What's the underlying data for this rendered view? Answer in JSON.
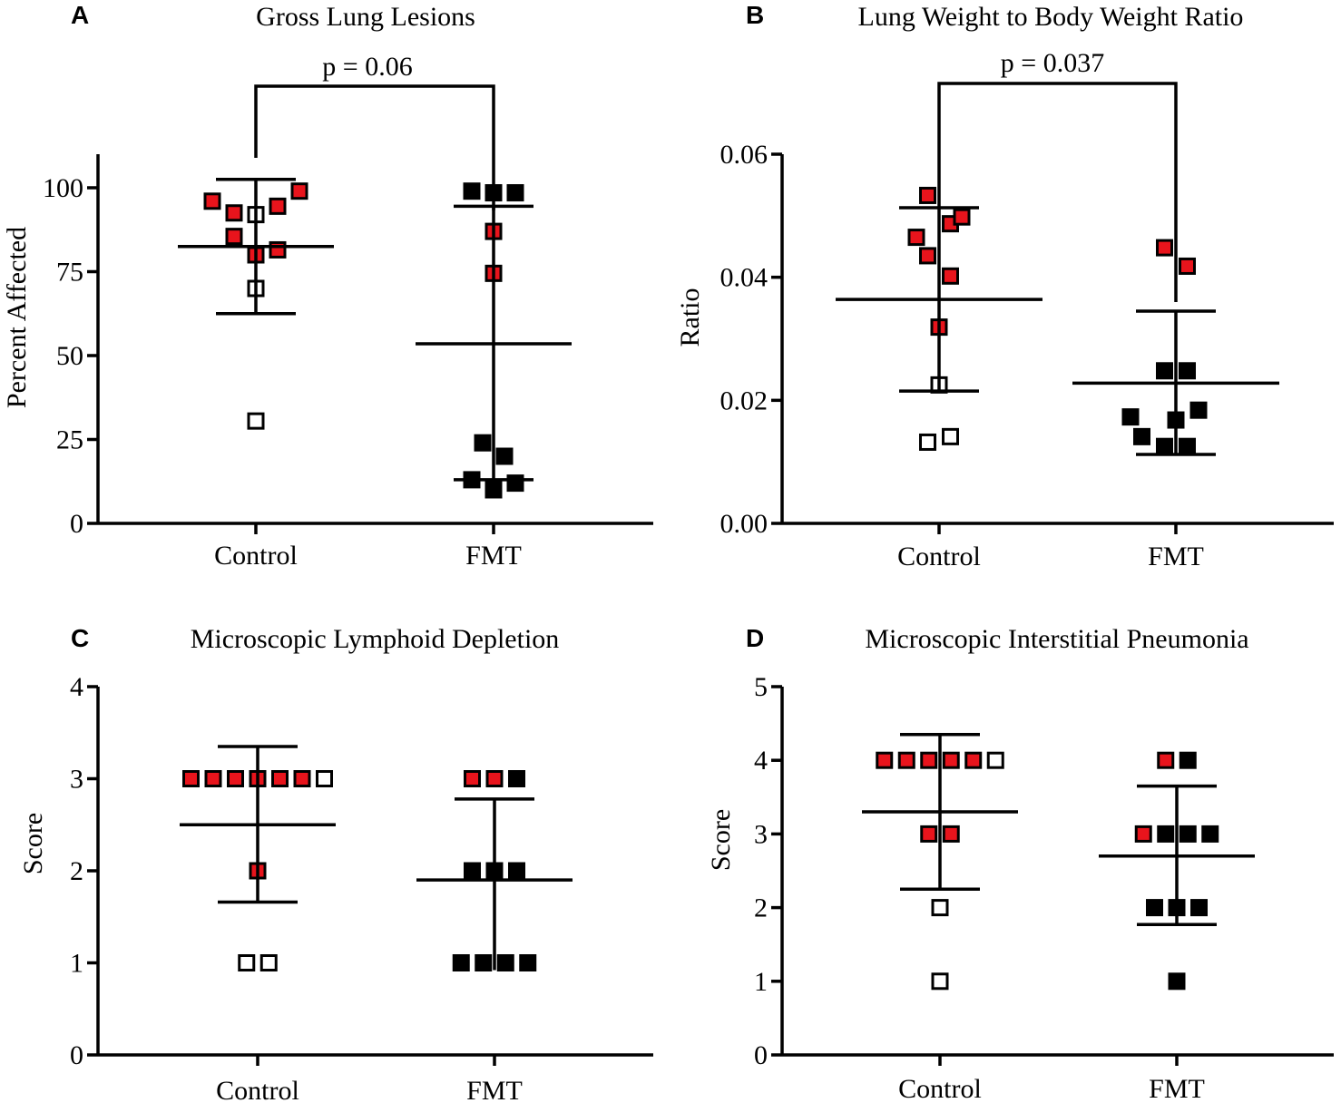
{
  "chart_data": [
    {
      "type": "scatter",
      "letter": "A",
      "title": "Gross Lung Lesions",
      "xlabel": "",
      "ylabel": "Percent Affected",
      "ylim": [
        0,
        110
      ],
      "yticks": [
        "0",
        "25",
        "50",
        "75",
        "100"
      ],
      "ytick_values": [
        0,
        25,
        50,
        75,
        100
      ],
      "categories": [
        "Control",
        "FMT"
      ],
      "colors": {
        "red": "#e8141c",
        "black": "#000000",
        "open": "#ffffff"
      },
      "series": [
        {
          "name": "Control",
          "mean": 82.5,
          "sd_low": 62.5,
          "sd_high": 102.5,
          "points": [
            {
              "y": 96,
              "fill": "red",
              "offset": -2
            },
            {
              "y": 92.5,
              "fill": "red",
              "offset": -1
            },
            {
              "y": 92,
              "fill": "open",
              "offset": 0
            },
            {
              "y": 94.5,
              "fill": "red",
              "offset": 1
            },
            {
              "y": 99,
              "fill": "red",
              "offset": 2
            },
            {
              "y": 85.5,
              "fill": "red",
              "offset": -1
            },
            {
              "y": 80,
              "fill": "red",
              "offset": 0
            },
            {
              "y": 81.5,
              "fill": "red",
              "offset": 1
            },
            {
              "y": 70,
              "fill": "open",
              "offset": 0
            },
            {
              "y": 30.5,
              "fill": "open",
              "offset": 0
            }
          ]
        },
        {
          "name": "FMT",
          "mean": 53.5,
          "sd_low": 13,
          "sd_high": 94.5,
          "points": [
            {
              "y": 99,
              "fill": "black",
              "offset": -1
            },
            {
              "y": 98.5,
              "fill": "black",
              "offset": 0
            },
            {
              "y": 98.5,
              "fill": "black",
              "offset": 1
            },
            {
              "y": 87,
              "fill": "red",
              "offset": 0
            },
            {
              "y": 74.5,
              "fill": "red",
              "offset": 0
            },
            {
              "y": 24,
              "fill": "black",
              "offset": -0.5
            },
            {
              "y": 20,
              "fill": "black",
              "offset": 0.5
            },
            {
              "y": 13,
              "fill": "black",
              "offset": -1
            },
            {
              "y": 10,
              "fill": "black",
              "offset": 0
            },
            {
              "y": 12,
              "fill": "black",
              "offset": 1
            }
          ]
        }
      ],
      "comparison": {
        "label": "p = 0.06"
      }
    },
    {
      "type": "scatter",
      "letter": "B",
      "title": "Lung Weight to Body Weight Ratio",
      "xlabel": "",
      "ylabel": "Ratio",
      "ylim": [
        0,
        0.06
      ],
      "yticks": [
        "0.00",
        "0.02",
        "0.04",
        "0.06"
      ],
      "ytick_values": [
        0,
        0.02,
        0.04,
        0.06
      ],
      "categories": [
        "Control",
        "FMT"
      ],
      "colors": {
        "red": "#e8141c",
        "black": "#000000",
        "open": "#ffffff"
      },
      "series": [
        {
          "name": "Control",
          "mean": 0.0364,
          "sd_low": 0.0215,
          "sd_high": 0.0513,
          "points": [
            {
              "y": 0.0533,
              "fill": "red",
              "offset": -0.5
            },
            {
              "y": 0.0465,
              "fill": "red",
              "offset": -1
            },
            {
              "y": 0.0487,
              "fill": "red",
              "offset": 0.5
            },
            {
              "y": 0.0498,
              "fill": "red",
              "offset": 1
            },
            {
              "y": 0.0435,
              "fill": "red",
              "offset": -0.5
            },
            {
              "y": 0.0402,
              "fill": "red",
              "offset": 0.5
            },
            {
              "y": 0.0319,
              "fill": "red",
              "offset": 0
            },
            {
              "y": 0.0225,
              "fill": "open",
              "offset": 0
            },
            {
              "y": 0.0132,
              "fill": "open",
              "offset": -0.5
            },
            {
              "y": 0.0141,
              "fill": "open",
              "offset": 0.5
            }
          ]
        },
        {
          "name": "FMT",
          "mean": 0.0228,
          "sd_low": 0.0112,
          "sd_high": 0.0345,
          "points": [
            {
              "y": 0.0448,
              "fill": "red",
              "offset": -0.5
            },
            {
              "y": 0.0418,
              "fill": "red",
              "offset": 0.5
            },
            {
              "y": 0.0248,
              "fill": "black",
              "offset": -0.5
            },
            {
              "y": 0.0248,
              "fill": "black",
              "offset": 0.5
            },
            {
              "y": 0.0173,
              "fill": "black",
              "offset": -2
            },
            {
              "y": 0.0168,
              "fill": "black",
              "offset": 0
            },
            {
              "y": 0.0184,
              "fill": "black",
              "offset": 1
            },
            {
              "y": 0.0141,
              "fill": "black",
              "offset": -1.5
            },
            {
              "y": 0.0125,
              "fill": "black",
              "offset": -0.5
            },
            {
              "y": 0.0125,
              "fill": "black",
              "offset": 0.5
            }
          ]
        }
      ],
      "comparison": {
        "label": "p = 0.037"
      }
    },
    {
      "type": "scatter",
      "letter": "C",
      "title": "Microscopic Lymphoid Depletion",
      "xlabel": "",
      "ylabel": "Score",
      "ylim": [
        0,
        4
      ],
      "yticks": [
        "0",
        "1",
        "2",
        "3",
        "4"
      ],
      "ytick_values": [
        0,
        1,
        2,
        3,
        4
      ],
      "categories": [
        "Control",
        "FMT"
      ],
      "colors": {
        "red": "#e8141c",
        "black": "#000000",
        "open": "#ffffff"
      },
      "series": [
        {
          "name": "Control",
          "mean": 2.5,
          "sd_low": 1.66,
          "sd_high": 3.35,
          "points": [
            {
              "y": 3,
              "fill": "red",
              "offset": -3
            },
            {
              "y": 3,
              "fill": "red",
              "offset": -2
            },
            {
              "y": 3,
              "fill": "red",
              "offset": -1
            },
            {
              "y": 3,
              "fill": "red",
              "offset": 0
            },
            {
              "y": 3,
              "fill": "red",
              "offset": 1
            },
            {
              "y": 3,
              "fill": "red",
              "offset": 2
            },
            {
              "y": 3,
              "fill": "open",
              "offset": 3
            },
            {
              "y": 2,
              "fill": "red",
              "offset": 0
            },
            {
              "y": 1,
              "fill": "open",
              "offset": -0.5
            },
            {
              "y": 1,
              "fill": "open",
              "offset": 0.5
            }
          ]
        },
        {
          "name": "FMT",
          "mean": 1.9,
          "sd_low": null,
          "sd_high": 2.78,
          "points": [
            {
              "y": 3,
              "fill": "red",
              "offset": -1
            },
            {
              "y": 3,
              "fill": "red",
              "offset": 0
            },
            {
              "y": 3,
              "fill": "black",
              "offset": 1
            },
            {
              "y": 2,
              "fill": "black",
              "offset": -1
            },
            {
              "y": 2,
              "fill": "black",
              "offset": 0
            },
            {
              "y": 2,
              "fill": "black",
              "offset": 1
            },
            {
              "y": 1,
              "fill": "black",
              "offset": -1.5
            },
            {
              "y": 1,
              "fill": "black",
              "offset": -0.5
            },
            {
              "y": 1,
              "fill": "black",
              "offset": 0.5
            },
            {
              "y": 1,
              "fill": "black",
              "offset": 1.5
            }
          ]
        }
      ]
    },
    {
      "type": "scatter",
      "letter": "D",
      "title": "Microscopic Interstitial Pneumonia",
      "xlabel": "",
      "ylabel": "Score",
      "ylim": [
        0,
        5
      ],
      "yticks": [
        "0",
        "1",
        "2",
        "3",
        "4",
        "5"
      ],
      "ytick_values": [
        0,
        1,
        2,
        3,
        4,
        5
      ],
      "categories": [
        "Control",
        "FMT"
      ],
      "colors": {
        "red": "#e8141c",
        "black": "#000000",
        "open": "#ffffff"
      },
      "series": [
        {
          "name": "Control",
          "mean": 3.3,
          "sd_low": 2.25,
          "sd_high": 4.35,
          "points": [
            {
              "y": 4,
              "fill": "red",
              "offset": -2.5
            },
            {
              "y": 4,
              "fill": "red",
              "offset": -1.5
            },
            {
              "y": 4,
              "fill": "red",
              "offset": -0.5
            },
            {
              "y": 4,
              "fill": "red",
              "offset": 0.5
            },
            {
              "y": 4,
              "fill": "red",
              "offset": 1.5
            },
            {
              "y": 4,
              "fill": "open",
              "offset": 2.5
            },
            {
              "y": 3,
              "fill": "red",
              "offset": -0.5
            },
            {
              "y": 3,
              "fill": "red",
              "offset": 0.5
            },
            {
              "y": 2,
              "fill": "open",
              "offset": 0
            },
            {
              "y": 1,
              "fill": "open",
              "offset": 0
            }
          ]
        },
        {
          "name": "FMT",
          "mean": 2.7,
          "sd_low": 1.77,
          "sd_high": 3.65,
          "points": [
            {
              "y": 4,
              "fill": "red",
              "offset": -0.5
            },
            {
              "y": 4,
              "fill": "black",
              "offset": 0.5
            },
            {
              "y": 3,
              "fill": "red",
              "offset": -1.5
            },
            {
              "y": 3,
              "fill": "black",
              "offset": -0.5
            },
            {
              "y": 3,
              "fill": "black",
              "offset": 0.5
            },
            {
              "y": 3,
              "fill": "black",
              "offset": 1.5
            },
            {
              "y": 2,
              "fill": "black",
              "offset": -1
            },
            {
              "y": 2,
              "fill": "black",
              "offset": 0
            },
            {
              "y": 2,
              "fill": "black",
              "offset": 1
            },
            {
              "y": 1,
              "fill": "black",
              "offset": 0
            }
          ]
        }
      ]
    }
  ]
}
